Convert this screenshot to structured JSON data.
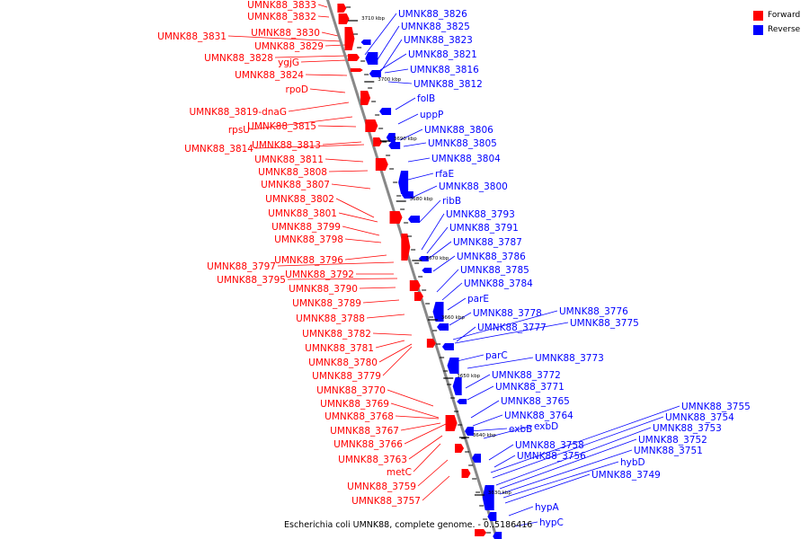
{
  "caption": "Escherichia coli UMNK88, complete genome. - 0..5186416",
  "legend": [
    {
      "label": "Forward",
      "color": "#ff0000"
    },
    {
      "label": "Reverse",
      "color": "#0000ff"
    }
  ],
  "colors": {
    "forward": "#ff0000",
    "reverse": "#0000ff",
    "backbone": "#888888"
  },
  "ticks": [
    "3710 kbp",
    "3700 kbp",
    "3690 kbp",
    "3680 kbp",
    "3670 kbp",
    "3660 kbp",
    "3650 kbp",
    "3640 kbp",
    "3630 kbp"
  ],
  "forward_labels": [
    "UMNK88_3833",
    "UMNK88_3832",
    "UMNK88_3830",
    "UMNK88_3831",
    "UMNK88_3829",
    "UMNK88_3828",
    "ygjG",
    "UMNK88_3824",
    "rpoD",
    "UMNK88_3819-dnaG",
    "rpsU",
    "UMNK88_3815",
    "UMNK88_3813",
    "UMNK88_3814",
    "UMNK88_3811",
    "UMNK88_3808",
    "UMNK88_3807",
    "UMNK88_3802",
    "UMNK88_3801",
    "UMNK88_3799",
    "UMNK88_3798",
    "UMNK88_3796",
    "UMNK88_3797",
    "UMNK88_3792",
    "UMNK88_3795",
    "UMNK88_3790",
    "UMNK88_3789",
    "UMNK88_3788",
    "UMNK88_3782",
    "UMNK88_3781",
    "UMNK88_3780",
    "UMNK88_3779",
    "UMNK88_3770",
    "UMNK88_3769",
    "UMNK88_3768",
    "UMNK88_3767",
    "UMNK88_3766",
    "UMNK88_3763",
    "metC",
    "UMNK88_3759",
    "UMNK88_3757"
  ],
  "reverse_labels": [
    "UMNK88_3826",
    "UMNK88_3825",
    "UMNK88_3823",
    "UMNK88_3821",
    "UMNK88_3816",
    "UMNK88_3812",
    "folB",
    "uppP",
    "UMNK88_3806",
    "UMNK88_3805",
    "UMNK88_3804",
    "rfaE",
    "UMNK88_3800",
    "ribB",
    "UMNK88_3793",
    "UMNK88_3791",
    "UMNK88_3787",
    "UMNK88_3786",
    "UMNK88_3785",
    "UMNK88_3784",
    "parE",
    "UMNK88_3778",
    "UMNK88_3776",
    "UMNK88_3777",
    "UMNK88_3775",
    "parC",
    "UMNK88_3773",
    "UMNK88_3772",
    "UMNK88_3771",
    "UMNK88_3765",
    "UMNK88_3764",
    "exbB",
    "exbD",
    "UMNK88_3758",
    "UMNK88_3756",
    "UMNK88_3755",
    "UMNK88_3754",
    "UMNK88_3753",
    "UMNK88_3752",
    "UMNK88_3751",
    "hybD",
    "UMNK88_3749",
    "hypA",
    "hypC"
  ]
}
